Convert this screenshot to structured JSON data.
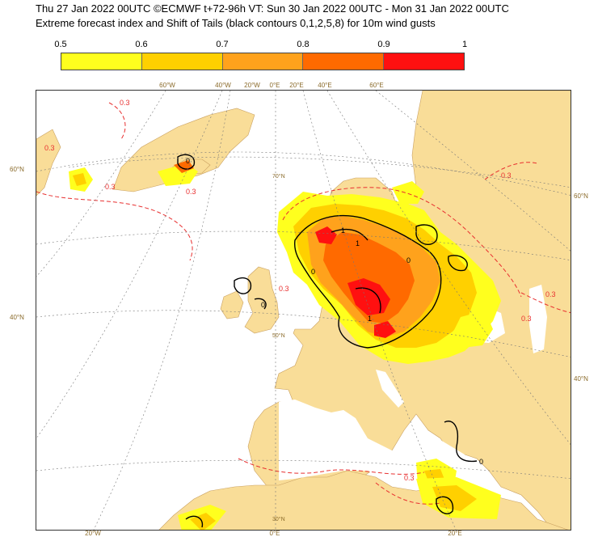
{
  "header": {
    "line1": "Thu 27 Jan 2022 00UTC ©ECMWF t+72-96h  VT: Sun 30 Jan 2022 00UTC - Mon 31 Jan 2022 00UTC",
    "line2": "Extreme forecast index and Shift of Tails (black contours 0,1,2,5,8) for 10m wind gusts"
  },
  "colorbar": {
    "ticks": [
      "0.5",
      "0.6",
      "0.7",
      "0.8",
      "0.9",
      "1"
    ],
    "colors": [
      "#ffff1e",
      "#ffd000",
      "#ffa21c",
      "#ff6a00",
      "#ff1010"
    ]
  },
  "map": {
    "land_color": "#f9dd98",
    "sea_color": "#ffffff",
    "top_lon_labels": [
      "60°W",
      "40°W",
      "20°W",
      "0°E",
      "20°E",
      "40°E",
      "60°E"
    ],
    "bottom_lon_labels": [
      "20°W",
      "0°E",
      "20°E"
    ],
    "left_lat_labels": [
      "60°N",
      "40°N"
    ],
    "right_lat_labels": [
      "60°N",
      "40°N"
    ],
    "inner_lat_labels": [
      "70°N",
      "50°N",
      "30°N"
    ],
    "contour_labels": [
      "0.3",
      "0.3",
      "0.3",
      "0.3",
      "0.3",
      "0.3",
      "0.3",
      "0.3",
      "0.3"
    ],
    "sot_labels": [
      "0",
      "1",
      "1",
      "0",
      "0",
      "0",
      "1",
      "0"
    ]
  }
}
